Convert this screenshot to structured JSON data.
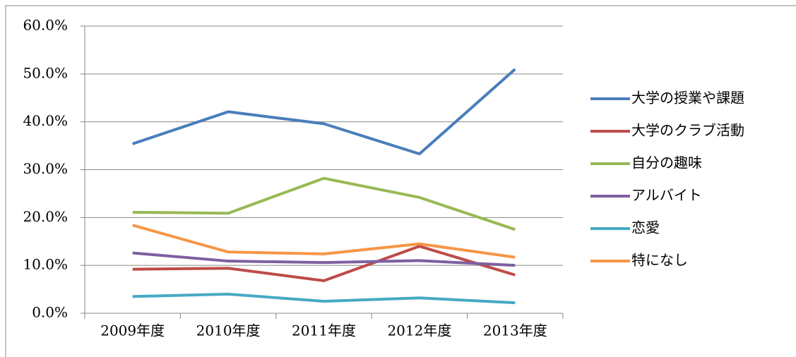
{
  "chart_data": {
    "type": "line",
    "categories": [
      "2009年度",
      "2010年度",
      "2011年度",
      "2012年度",
      "2013年度"
    ],
    "series": [
      {
        "name": "大学の授業や課題",
        "color": "#4a7ebb",
        "values": [
          35.4,
          42.1,
          39.6,
          33.3,
          51.0
        ]
      },
      {
        "name": "大学のクラブ活動",
        "color": "#be4b48",
        "values": [
          9.2,
          9.4,
          6.8,
          14.0,
          8.0
        ]
      },
      {
        "name": "自分の趣味",
        "color": "#98b954",
        "values": [
          21.1,
          20.9,
          28.2,
          24.2,
          17.5
        ]
      },
      {
        "name": "アルバイト",
        "color": "#7d60a0",
        "values": [
          12.6,
          10.9,
          10.6,
          11.0,
          10.0
        ]
      },
      {
        "name": "恋愛",
        "color": "#46aac5",
        "values": [
          3.5,
          4.0,
          2.5,
          3.2,
          2.2
        ]
      },
      {
        "name": "特になし",
        "color": "#f79646",
        "values": [
          18.4,
          12.8,
          12.4,
          14.5,
          11.7
        ]
      }
    ],
    "ylim": [
      0,
      60
    ],
    "yticks": [
      {
        "value": 0,
        "label": "0.0%"
      },
      {
        "value": 10,
        "label": "10.0%"
      },
      {
        "value": 20,
        "label": "20.0%"
      },
      {
        "value": 30,
        "label": "30.0%"
      },
      {
        "value": 40,
        "label": "40.0%"
      },
      {
        "value": 50,
        "label": "50.0%"
      },
      {
        "value": 60,
        "label": "60.0%"
      }
    ],
    "grid": true,
    "legend": "right"
  }
}
